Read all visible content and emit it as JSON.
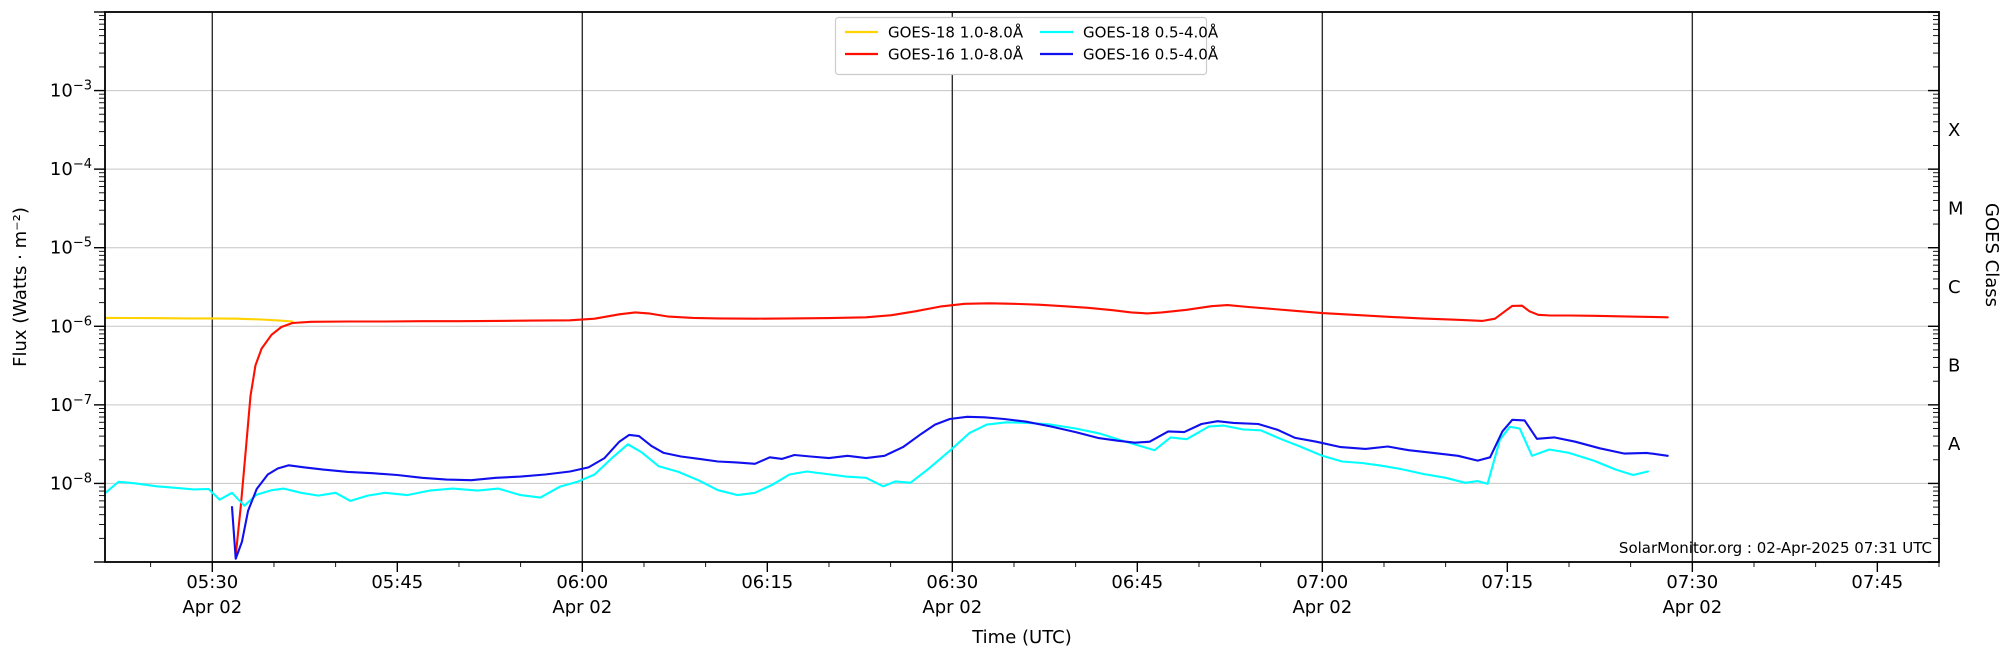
{
  "annotation": "SolarMonitor.org : 02-Apr-2025 07:31 UTC",
  "chart_data": {
    "type": "line",
    "title": "",
    "xlabel": "Time (UTC)",
    "ylabel": "Flux (Watts · m⁻²)",
    "ylabel_right": "GOES Class",
    "yscale": "log",
    "ylim": [
      1e-09,
      0.01
    ],
    "xlim_utc": [
      "05:21:20",
      "07:50:00"
    ],
    "x_unit": "minutes after 05:30 UTC",
    "grid": {
      "horizontal": "light-gray at each decade",
      "vertical": "dark at each 30 min"
    },
    "legend_position": "top-center, 2 columns, framed box",
    "x_ticks": [
      {
        "t": 0,
        "label": "05:30",
        "date": "Apr 02"
      },
      {
        "t": 15,
        "label": "05:45",
        "date": ""
      },
      {
        "t": 30,
        "label": "06:00",
        "date": "Apr 02"
      },
      {
        "t": 45,
        "label": "06:15",
        "date": ""
      },
      {
        "t": 60,
        "label": "06:30",
        "date": "Apr 02"
      },
      {
        "t": 75,
        "label": "06:45",
        "date": ""
      },
      {
        "t": 90,
        "label": "07:00",
        "date": "Apr 02"
      },
      {
        "t": 105,
        "label": "07:15",
        "date": ""
      },
      {
        "t": 120,
        "label": "07:30",
        "date": "Apr 02"
      },
      {
        "t": 135,
        "label": "07:45",
        "date": ""
      }
    ],
    "x_minor_tick_step_min": 5,
    "vertical_gridlines_t": [
      0,
      30,
      60,
      90,
      120
    ],
    "y_tick_exponents": [
      -3,
      -4,
      -5,
      -6,
      -7,
      -8
    ],
    "goes_class_labels": [
      {
        "label": "X",
        "flux": 0.000316
      },
      {
        "label": "M",
        "flux": 3.16e-05
      },
      {
        "label": "C",
        "flux": 3.16e-06
      },
      {
        "label": "B",
        "flux": 3.16e-07
      },
      {
        "label": "A",
        "flux": 3.16e-08
      }
    ],
    "series": [
      {
        "name": "GOES-18 1.0-8.0Å",
        "color": "#ffd200",
        "points": [
          [
            -8.7,
            1.28e-06
          ],
          [
            -5,
            1.27e-06
          ],
          [
            -2,
            1.26e-06
          ],
          [
            0,
            1.26e-06
          ],
          [
            2,
            1.25e-06
          ],
          [
            4,
            1.22e-06
          ],
          [
            5.5,
            1.18e-06
          ],
          [
            6.5,
            1.15e-06
          ]
        ]
      },
      {
        "name": "GOES-16 1.0-8.0Å",
        "color": "#ff0f00",
        "points": [
          [
            1.9,
            1.2e-09
          ],
          [
            2.3,
            5e-09
          ],
          [
            2.7,
            2.5e-08
          ],
          [
            3.1,
            1.3e-07
          ],
          [
            3.5,
            3.2e-07
          ],
          [
            4.0,
            5.2e-07
          ],
          [
            4.8,
            7.8e-07
          ],
          [
            5.6,
            9.8e-07
          ],
          [
            6.5,
            1.1e-06
          ],
          [
            8,
            1.14e-06
          ],
          [
            11,
            1.15e-06
          ],
          [
            14,
            1.15e-06
          ],
          [
            17,
            1.16e-06
          ],
          [
            20,
            1.16e-06
          ],
          [
            23,
            1.17e-06
          ],
          [
            26,
            1.18e-06
          ],
          [
            29,
            1.19e-06
          ],
          [
            31,
            1.25e-06
          ],
          [
            33,
            1.42e-06
          ],
          [
            34.3,
            1.5e-06
          ],
          [
            35.5,
            1.45e-06
          ],
          [
            37,
            1.33e-06
          ],
          [
            39,
            1.28e-06
          ],
          [
            41,
            1.26e-06
          ],
          [
            44,
            1.25e-06
          ],
          [
            47,
            1.26e-06
          ],
          [
            50,
            1.27e-06
          ],
          [
            53,
            1.3e-06
          ],
          [
            55,
            1.38e-06
          ],
          [
            57,
            1.55e-06
          ],
          [
            59,
            1.78e-06
          ],
          [
            61,
            1.93e-06
          ],
          [
            63,
            1.96e-06
          ],
          [
            65,
            1.93e-06
          ],
          [
            67,
            1.88e-06
          ],
          [
            69,
            1.8e-06
          ],
          [
            71,
            1.72e-06
          ],
          [
            73,
            1.6e-06
          ],
          [
            74.5,
            1.5e-06
          ],
          [
            75.8,
            1.46e-06
          ],
          [
            77,
            1.5e-06
          ],
          [
            79,
            1.62e-06
          ],
          [
            81,
            1.8e-06
          ],
          [
            82.3,
            1.86e-06
          ],
          [
            84,
            1.76e-06
          ],
          [
            86,
            1.66e-06
          ],
          [
            88,
            1.56e-06
          ],
          [
            90,
            1.47e-06
          ],
          [
            92.5,
            1.4e-06
          ],
          [
            95,
            1.33e-06
          ],
          [
            98,
            1.26e-06
          ],
          [
            101,
            1.21e-06
          ],
          [
            103,
            1.17e-06
          ],
          [
            104,
            1.25e-06
          ],
          [
            104.8,
            1.55e-06
          ],
          [
            105.4,
            1.82e-06
          ],
          [
            106.2,
            1.83e-06
          ],
          [
            106.8,
            1.55e-06
          ],
          [
            107.5,
            1.4e-06
          ],
          [
            108.5,
            1.37e-06
          ],
          [
            110,
            1.37e-06
          ],
          [
            112,
            1.36e-06
          ],
          [
            114,
            1.34e-06
          ],
          [
            116,
            1.32e-06
          ],
          [
            118,
            1.3e-06
          ]
        ]
      },
      {
        "name": "GOES-18 0.5-4.0Å",
        "color": "#00ffff",
        "points": [
          [
            -8.7,
            7.5e-09
          ],
          [
            -7.6,
            1.05e-08
          ],
          [
            -6.2,
            1e-08
          ],
          [
            -4.5,
            9.2e-09
          ],
          [
            -3,
            8.8e-09
          ],
          [
            -1.5,
            8.4e-09
          ],
          [
            -0.3,
            8.5e-09
          ],
          [
            0.6,
            6.2e-09
          ],
          [
            1.6,
            7.6e-09
          ],
          [
            2.6,
            5.2e-09
          ],
          [
            3.6,
            7.2e-09
          ],
          [
            4.8,
            8.2e-09
          ],
          [
            5.8,
            8.6e-09
          ],
          [
            7.2,
            7.6e-09
          ],
          [
            8.6,
            7e-09
          ],
          [
            10,
            7.6e-09
          ],
          [
            11.2,
            6e-09
          ],
          [
            12.6,
            7e-09
          ],
          [
            14,
            7.6e-09
          ],
          [
            15.8,
            7.1e-09
          ],
          [
            17.6,
            8.1e-09
          ],
          [
            19.5,
            8.6e-09
          ],
          [
            21.5,
            8.1e-09
          ],
          [
            23.2,
            8.6e-09
          ],
          [
            25,
            7.1e-09
          ],
          [
            26.6,
            6.6e-09
          ],
          [
            28.2,
            9.1e-09
          ],
          [
            29.6,
            1.05e-08
          ],
          [
            31,
            1.3e-08
          ],
          [
            32.4,
            2.1e-08
          ],
          [
            33.7,
            3.15e-08
          ],
          [
            34.8,
            2.5e-08
          ],
          [
            36.2,
            1.65e-08
          ],
          [
            37.8,
            1.4e-08
          ],
          [
            39.4,
            1.1e-08
          ],
          [
            41,
            8.2e-09
          ],
          [
            42.6,
            7.1e-09
          ],
          [
            44,
            7.6e-09
          ],
          [
            45.4,
            9.6e-09
          ],
          [
            46.8,
            1.3e-08
          ],
          [
            48.2,
            1.42e-08
          ],
          [
            49.8,
            1.32e-08
          ],
          [
            51.4,
            1.22e-08
          ],
          [
            53,
            1.18e-08
          ],
          [
            54.4,
            9.2e-09
          ],
          [
            55.4,
            1.06e-08
          ],
          [
            56.6,
            1.02e-08
          ],
          [
            58,
            1.5e-08
          ],
          [
            59.8,
            2.6e-08
          ],
          [
            61.4,
            4.4e-08
          ],
          [
            62.8,
            5.6e-08
          ],
          [
            64.4,
            6e-08
          ],
          [
            66.2,
            5.9e-08
          ],
          [
            68,
            5.6e-08
          ],
          [
            70,
            5e-08
          ],
          [
            72,
            4.3e-08
          ],
          [
            73.8,
            3.5e-08
          ],
          [
            75.2,
            3e-08
          ],
          [
            76.4,
            2.65e-08
          ],
          [
            77.7,
            3.85e-08
          ],
          [
            79,
            3.65e-08
          ],
          [
            80.8,
            5.3e-08
          ],
          [
            82,
            5.45e-08
          ],
          [
            83.6,
            4.85e-08
          ],
          [
            85,
            4.75e-08
          ],
          [
            86.6,
            3.7e-08
          ],
          [
            88.2,
            2.95e-08
          ],
          [
            90,
            2.25e-08
          ],
          [
            91.6,
            1.9e-08
          ],
          [
            93.2,
            1.82e-08
          ],
          [
            94.8,
            1.68e-08
          ],
          [
            96.4,
            1.52e-08
          ],
          [
            98.2,
            1.32e-08
          ],
          [
            100,
            1.18e-08
          ],
          [
            101.6,
            1.02e-08
          ],
          [
            102.6,
            1.07e-08
          ],
          [
            103.4,
            9.9e-09
          ],
          [
            104.4,
            3.6e-08
          ],
          [
            105.2,
            5.25e-08
          ],
          [
            106,
            5e-08
          ],
          [
            107,
            2.25e-08
          ],
          [
            108.4,
            2.7e-08
          ],
          [
            110,
            2.45e-08
          ],
          [
            112,
            1.95e-08
          ],
          [
            113.8,
            1.5e-08
          ],
          [
            115.2,
            1.28e-08
          ],
          [
            116.4,
            1.42e-08
          ]
        ]
      },
      {
        "name": "GOES-16 0.5-4.0Å",
        "color": "#1010ee",
        "points": [
          [
            1.6,
            5e-09
          ],
          [
            1.9,
            1.1e-09
          ],
          [
            2.4,
            1.8e-09
          ],
          [
            2.9,
            4.5e-09
          ],
          [
            3.6,
            8.5e-09
          ],
          [
            4.5,
            1.3e-08
          ],
          [
            5.3,
            1.55e-08
          ],
          [
            6.2,
            1.7e-08
          ],
          [
            7.5,
            1.6e-08
          ],
          [
            9,
            1.5e-08
          ],
          [
            11,
            1.4e-08
          ],
          [
            13,
            1.35e-08
          ],
          [
            15,
            1.28e-08
          ],
          [
            17,
            1.18e-08
          ],
          [
            19,
            1.12e-08
          ],
          [
            21,
            1.1e-08
          ],
          [
            23,
            1.18e-08
          ],
          [
            25,
            1.22e-08
          ],
          [
            27,
            1.3e-08
          ],
          [
            29,
            1.42e-08
          ],
          [
            30.5,
            1.6e-08
          ],
          [
            31.8,
            2.1e-08
          ],
          [
            33,
            3.4e-08
          ],
          [
            33.8,
            4.15e-08
          ],
          [
            34.6,
            4e-08
          ],
          [
            35.6,
            3e-08
          ],
          [
            36.6,
            2.45e-08
          ],
          [
            38,
            2.2e-08
          ],
          [
            39.5,
            2.05e-08
          ],
          [
            41,
            1.9e-08
          ],
          [
            42.5,
            1.85e-08
          ],
          [
            44,
            1.78e-08
          ],
          [
            45.2,
            2.15e-08
          ],
          [
            46.2,
            2.05e-08
          ],
          [
            47.2,
            2.3e-08
          ],
          [
            48.5,
            2.2e-08
          ],
          [
            50,
            2.1e-08
          ],
          [
            51.5,
            2.25e-08
          ],
          [
            53,
            2.1e-08
          ],
          [
            54.5,
            2.25e-08
          ],
          [
            56,
            2.9e-08
          ],
          [
            57.5,
            4.3e-08
          ],
          [
            58.6,
            5.6e-08
          ],
          [
            59.8,
            6.6e-08
          ],
          [
            61.2,
            7.05e-08
          ],
          [
            62.6,
            6.95e-08
          ],
          [
            64.2,
            6.6e-08
          ],
          [
            66,
            6.1e-08
          ],
          [
            68,
            5.3e-08
          ],
          [
            70,
            4.5e-08
          ],
          [
            71.8,
            3.8e-08
          ],
          [
            73.4,
            3.5e-08
          ],
          [
            74.8,
            3.3e-08
          ],
          [
            76,
            3.4e-08
          ],
          [
            77.5,
            4.6e-08
          ],
          [
            78.8,
            4.5e-08
          ],
          [
            80.2,
            5.7e-08
          ],
          [
            81.5,
            6.2e-08
          ],
          [
            82.8,
            5.9e-08
          ],
          [
            84.8,
            5.7e-08
          ],
          [
            86.4,
            4.8e-08
          ],
          [
            87.8,
            3.8e-08
          ],
          [
            89.5,
            3.4e-08
          ],
          [
            91.5,
            2.9e-08
          ],
          [
            93.5,
            2.75e-08
          ],
          [
            95.3,
            2.95e-08
          ],
          [
            97,
            2.65e-08
          ],
          [
            99,
            2.45e-08
          ],
          [
            101,
            2.25e-08
          ],
          [
            102.6,
            1.95e-08
          ],
          [
            103.6,
            2.15e-08
          ],
          [
            104.6,
            4.6e-08
          ],
          [
            105.4,
            6.45e-08
          ],
          [
            106.4,
            6.35e-08
          ],
          [
            107.4,
            3.7e-08
          ],
          [
            108.8,
            3.85e-08
          ],
          [
            110.5,
            3.4e-08
          ],
          [
            112.5,
            2.8e-08
          ],
          [
            114.5,
            2.4e-08
          ],
          [
            116.3,
            2.45e-08
          ],
          [
            118,
            2.25e-08
          ]
        ]
      }
    ],
    "legend": [
      {
        "label": "GOES-18 1.0-8.0Å",
        "color": "#ffd200"
      },
      {
        "label": "GOES-16 1.0-8.0Å",
        "color": "#ff0f00"
      },
      {
        "label": "GOES-18 0.5-4.0Å",
        "color": "#00ffff"
      },
      {
        "label": "GOES-16 0.5-4.0Å",
        "color": "#1010ee"
      }
    ],
    "colors": {
      "h_gridline": "#c6c6c6",
      "v_gridline": "#2e2e2e",
      "spine": "#000000",
      "background": "#ffffff"
    }
  }
}
